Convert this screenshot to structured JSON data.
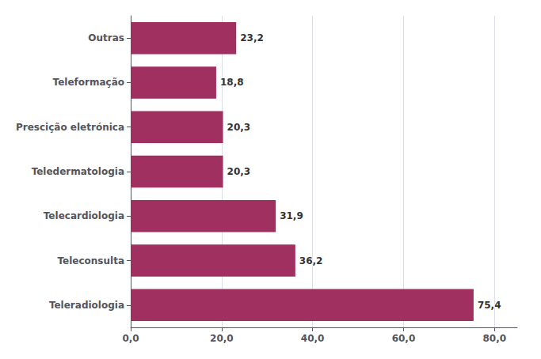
{
  "chart_data": {
    "type": "bar",
    "orientation": "horizontal",
    "categories": [
      "Teleradiologia",
      "Teleconsulta",
      "Telecardiologia",
      "Teledermatologia",
      "Prescição eletrónica",
      "Teleformação",
      "Outras"
    ],
    "values": [
      75.4,
      36.2,
      31.9,
      20.3,
      20.3,
      18.8,
      23.2
    ],
    "value_labels": [
      "75,4",
      "36,2",
      "31,9",
      "20,3",
      "20,3",
      "18,8",
      "23,2"
    ],
    "data_labels": true,
    "color": "#a03060",
    "xlim": [
      0,
      85
    ],
    "xticks": [
      {
        "value": 0.0,
        "label": "0,0"
      },
      {
        "value": 20.0,
        "label": "20,0"
      },
      {
        "value": 40.0,
        "label": "40,0"
      },
      {
        "value": 60.0,
        "label": "60,0"
      },
      {
        "value": 80.0,
        "label": "80,0"
      }
    ],
    "grid": true
  }
}
